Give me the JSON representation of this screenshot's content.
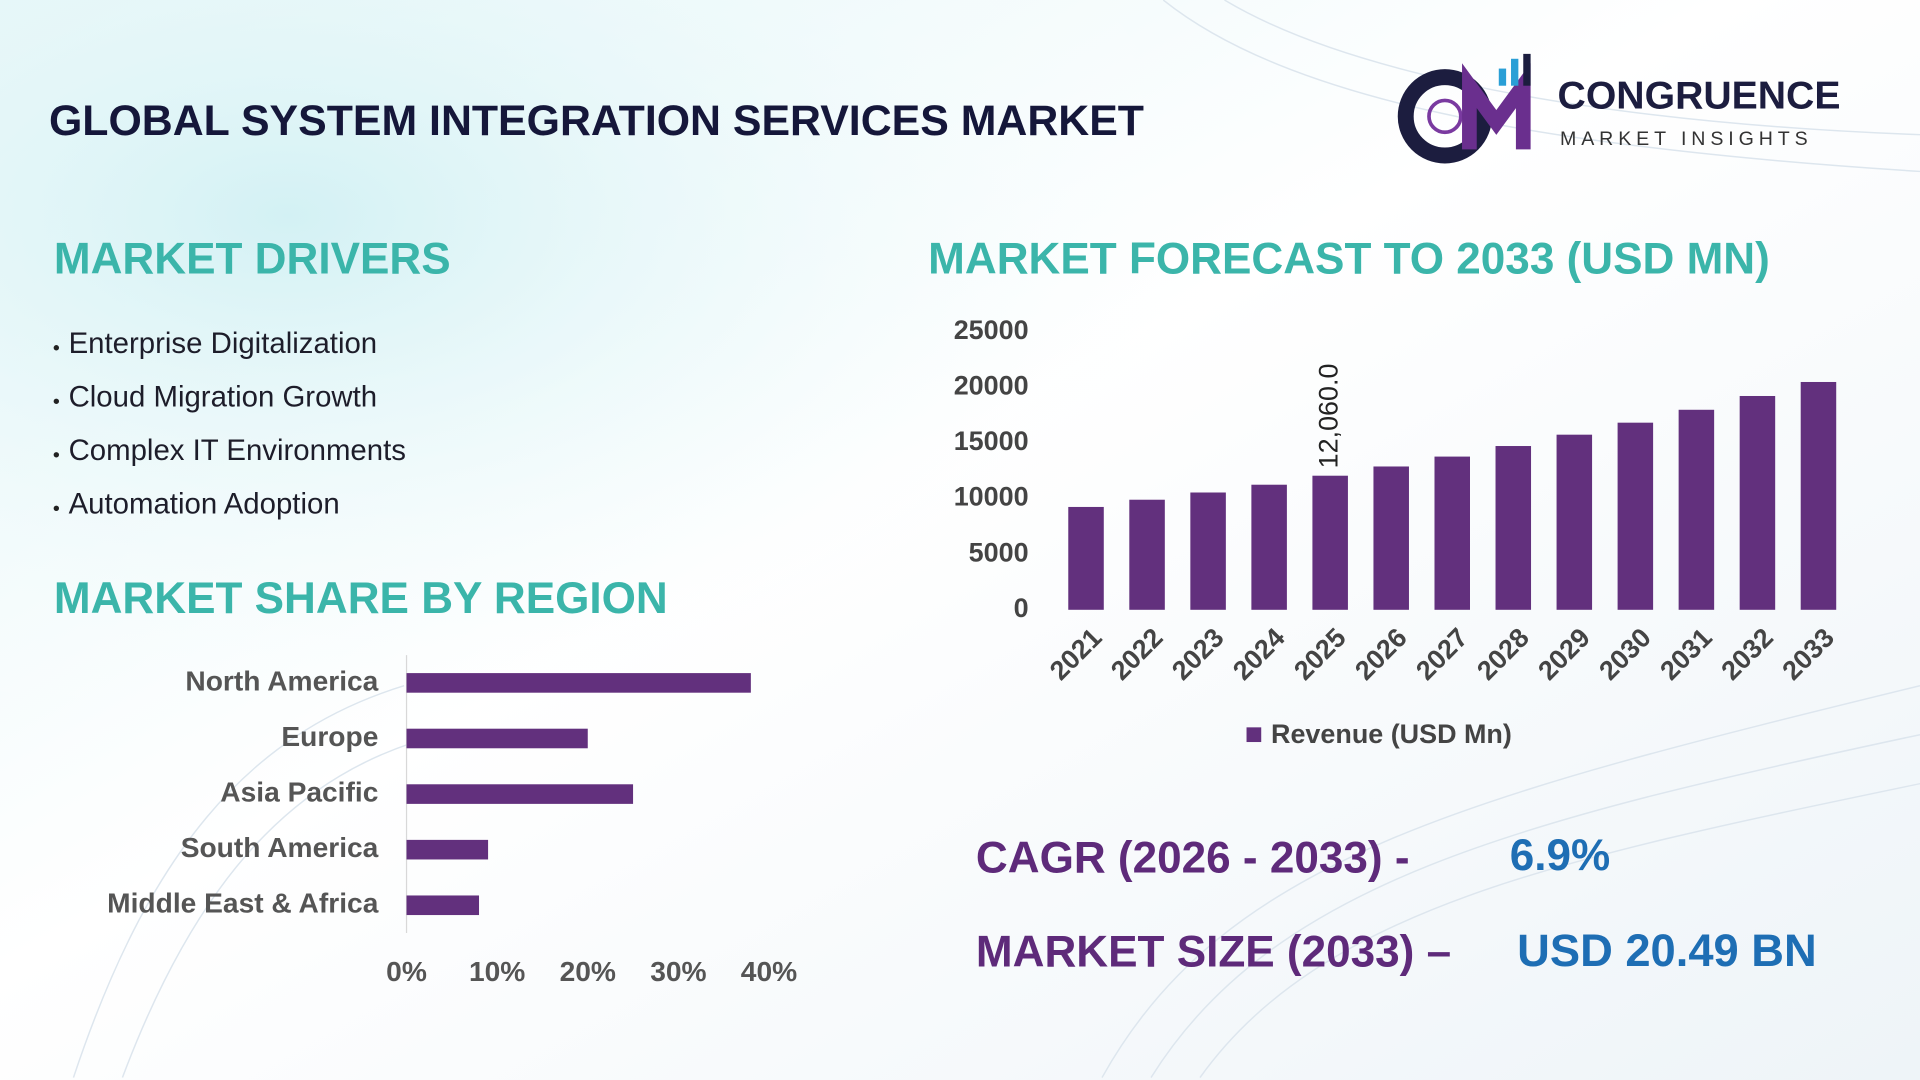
{
  "header": {
    "title": "GLOBAL SYSTEM INTEGRATION SERVICES MARKET"
  },
  "logo": {
    "name": "CONGRUENCE",
    "tagline": "MARKET INSIGHTS"
  },
  "drivers": {
    "heading": "MARKET DRIVERS",
    "items": [
      "Enterprise Digitalization",
      "Cloud Migration Growth",
      "Complex IT Environments",
      "Automation Adoption"
    ]
  },
  "stats": {
    "cagr_label": "CAGR (2026 - 2033) -",
    "cagr_value": "6.9%",
    "size_label": "MARKET SIZE (2033) –",
    "size_value": "USD 20.49 BN"
  },
  "chart_data": [
    {
      "type": "bar",
      "orientation": "vertical",
      "title": "MARKET FORECAST TO 2033 (USD MN)",
      "categories": [
        "2021",
        "2022",
        "2023",
        "2024",
        "2025",
        "2026",
        "2027",
        "2028",
        "2029",
        "2030",
        "2031",
        "2032",
        "2033"
      ],
      "series": [
        {
          "name": "Revenue (USD Mn)",
          "color": "#62307d",
          "values": [
            9250,
            9900,
            10550,
            11250,
            12060,
            12890,
            13780,
            14730,
            15750,
            16830,
            17990,
            19230,
            20490
          ],
          "value_labels": [
            null,
            null,
            null,
            null,
            "12,060.0",
            null,
            null,
            null,
            null,
            null,
            null,
            null,
            null
          ]
        }
      ],
      "ylim": [
        0,
        25000
      ],
      "yticks": [
        0,
        5000,
        10000,
        15000,
        20000,
        25000
      ],
      "legend": "bottom"
    },
    {
      "type": "bar",
      "orientation": "horizontal",
      "title": "MARKET SHARE BY REGION",
      "categories": [
        "North America",
        "Europe",
        "Asia Pacific",
        "South America",
        "Middle East & Africa"
      ],
      "values": [
        38,
        20,
        25,
        9,
        8
      ],
      "color": "#62307d",
      "xlim": [
        0,
        40
      ],
      "xticks": [
        {
          "value": 0,
          "label": "0%"
        },
        {
          "value": 10,
          "label": "10%"
        },
        {
          "value": 20,
          "label": "20%"
        },
        {
          "value": 30,
          "label": "30%"
        },
        {
          "value": 40,
          "label": "40%"
        }
      ]
    }
  ]
}
